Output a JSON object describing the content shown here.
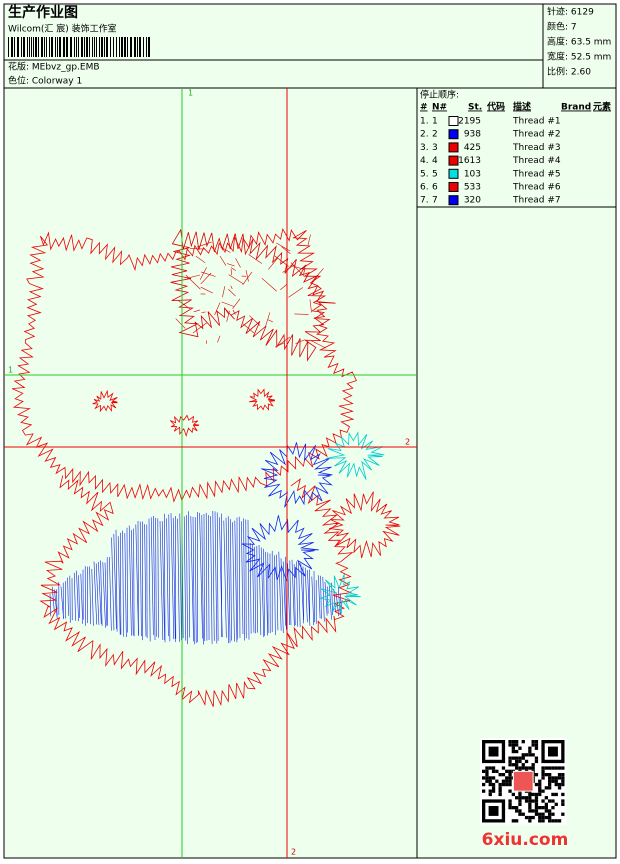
{
  "header": {
    "title": "生产作业图",
    "studio": "Wilcom(汇 宸) 装饰工作室",
    "design_file": "花版:  MEbvz_gp.EMB",
    "colorway": "色位:  Colorway 1"
  },
  "stats": [
    "针迹: 6129",
    "颜色: 7",
    "高度: 63.5 mm",
    "宽度: 52.5 mm",
    "比例: 2.60"
  ],
  "stop_sequence": {
    "title": "停止顺序:",
    "columns": [
      "#",
      "N#",
      "St.",
      "代码",
      "描述",
      "Brand",
      "元素"
    ],
    "rows": [
      {
        "index": "1.",
        "n": "1",
        "color": "#ffffff",
        "stitches": 2195,
        "description": "Thread #1"
      },
      {
        "index": "2.",
        "n": "2",
        "color": "#0000ee",
        "stitches": 938,
        "description": "Thread #2"
      },
      {
        "index": "3.",
        "n": "3",
        "color": "#ee0000",
        "stitches": 425,
        "description": "Thread #3"
      },
      {
        "index": "4.",
        "n": "4",
        "color": "#ee0000",
        "stitches": 1613,
        "description": "Thread #4"
      },
      {
        "index": "5.",
        "n": "5",
        "color": "#00e0e0",
        "stitches": 103,
        "description": "Thread #5"
      },
      {
        "index": "6.",
        "n": "6",
        "color": "#ee0000",
        "stitches": 533,
        "description": "Thread #6"
      },
      {
        "index": "7.",
        "n": "7",
        "color": "#0000ee",
        "stitches": 320,
        "description": "Thread #7"
      }
    ]
  },
  "markers": {
    "green": "1",
    "red": "2"
  },
  "watermark": "6xiu.com"
}
